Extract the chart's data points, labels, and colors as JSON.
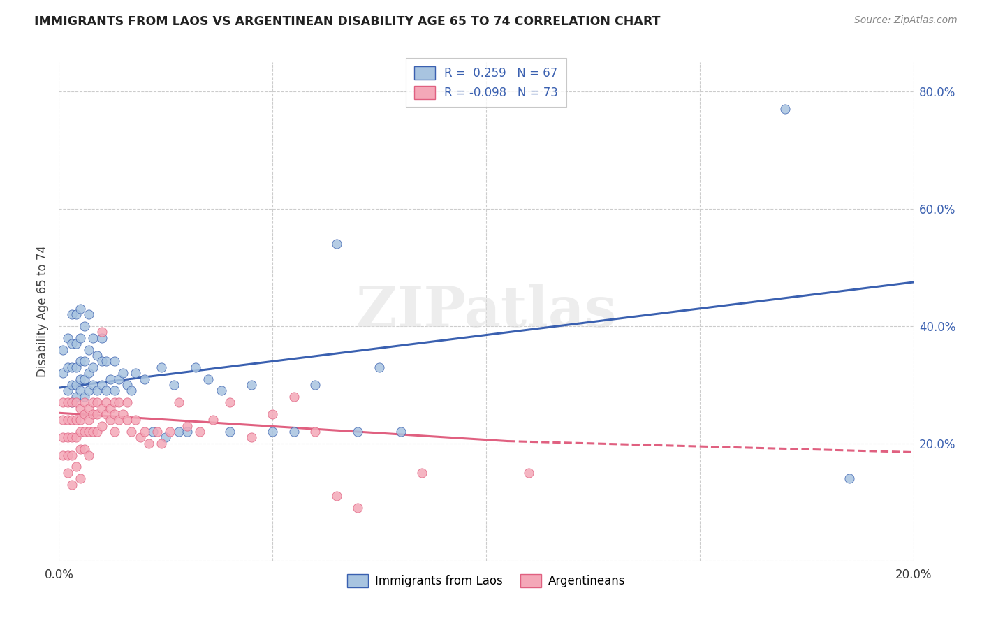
{
  "title": "IMMIGRANTS FROM LAOS VS ARGENTINEAN DISABILITY AGE 65 TO 74 CORRELATION CHART",
  "source": "Source: ZipAtlas.com",
  "ylabel": "Disability Age 65 to 74",
  "xlim": [
    0.0,
    0.2
  ],
  "ylim": [
    0.0,
    0.85
  ],
  "x_ticks": [
    0.0,
    0.05,
    0.1,
    0.15,
    0.2
  ],
  "x_tick_labels": [
    "0.0%",
    "",
    "",
    "",
    "20.0%"
  ],
  "y_ticks": [
    0.0,
    0.2,
    0.4,
    0.6,
    0.8
  ],
  "y_tick_labels_right": [
    "",
    "20.0%",
    "40.0%",
    "60.0%",
    "80.0%"
  ],
  "legend_r1": "R =  0.259",
  "legend_n1": "N = 67",
  "legend_r2": "R = -0.098",
  "legend_n2": "N = 73",
  "color_blue": "#a8c4e0",
  "color_pink": "#f4a8b8",
  "line_color_blue": "#3a60b0",
  "line_color_pink": "#e06080",
  "watermark": "ZIPatlas",
  "blue_x": [
    0.001,
    0.001,
    0.002,
    0.002,
    0.002,
    0.003,
    0.003,
    0.003,
    0.003,
    0.003,
    0.004,
    0.004,
    0.004,
    0.004,
    0.004,
    0.005,
    0.005,
    0.005,
    0.005,
    0.005,
    0.006,
    0.006,
    0.006,
    0.006,
    0.007,
    0.007,
    0.007,
    0.007,
    0.008,
    0.008,
    0.008,
    0.009,
    0.009,
    0.01,
    0.01,
    0.01,
    0.011,
    0.011,
    0.012,
    0.013,
    0.013,
    0.014,
    0.015,
    0.016,
    0.017,
    0.018,
    0.02,
    0.022,
    0.024,
    0.025,
    0.027,
    0.028,
    0.03,
    0.032,
    0.035,
    0.038,
    0.04,
    0.045,
    0.05,
    0.055,
    0.06,
    0.065,
    0.07,
    0.075,
    0.08,
    0.17,
    0.185
  ],
  "blue_y": [
    0.32,
    0.36,
    0.29,
    0.33,
    0.38,
    0.27,
    0.3,
    0.33,
    0.37,
    0.42,
    0.28,
    0.3,
    0.33,
    0.37,
    0.42,
    0.29,
    0.31,
    0.34,
    0.38,
    0.43,
    0.28,
    0.31,
    0.34,
    0.4,
    0.29,
    0.32,
    0.36,
    0.42,
    0.3,
    0.33,
    0.38,
    0.29,
    0.35,
    0.3,
    0.34,
    0.38,
    0.29,
    0.34,
    0.31,
    0.29,
    0.34,
    0.31,
    0.32,
    0.3,
    0.29,
    0.32,
    0.31,
    0.22,
    0.33,
    0.21,
    0.3,
    0.22,
    0.22,
    0.33,
    0.31,
    0.29,
    0.22,
    0.3,
    0.22,
    0.22,
    0.3,
    0.54,
    0.22,
    0.33,
    0.22,
    0.77,
    0.14
  ],
  "pink_x": [
    0.001,
    0.001,
    0.001,
    0.001,
    0.002,
    0.002,
    0.002,
    0.002,
    0.002,
    0.003,
    0.003,
    0.003,
    0.003,
    0.003,
    0.004,
    0.004,
    0.004,
    0.004,
    0.005,
    0.005,
    0.005,
    0.005,
    0.005,
    0.006,
    0.006,
    0.006,
    0.006,
    0.007,
    0.007,
    0.007,
    0.007,
    0.008,
    0.008,
    0.008,
    0.009,
    0.009,
    0.009,
    0.01,
    0.01,
    0.01,
    0.011,
    0.011,
    0.012,
    0.012,
    0.013,
    0.013,
    0.013,
    0.014,
    0.014,
    0.015,
    0.016,
    0.016,
    0.017,
    0.018,
    0.019,
    0.02,
    0.021,
    0.023,
    0.024,
    0.026,
    0.028,
    0.03,
    0.033,
    0.036,
    0.04,
    0.045,
    0.05,
    0.055,
    0.06,
    0.065,
    0.07,
    0.085,
    0.11
  ],
  "pink_y": [
    0.27,
    0.24,
    0.21,
    0.18,
    0.27,
    0.24,
    0.21,
    0.18,
    0.15,
    0.27,
    0.24,
    0.21,
    0.18,
    0.13,
    0.27,
    0.24,
    0.21,
    0.16,
    0.26,
    0.24,
    0.22,
    0.19,
    0.14,
    0.27,
    0.25,
    0.22,
    0.19,
    0.26,
    0.24,
    0.22,
    0.18,
    0.27,
    0.25,
    0.22,
    0.27,
    0.25,
    0.22,
    0.39,
    0.26,
    0.23,
    0.27,
    0.25,
    0.26,
    0.24,
    0.27,
    0.25,
    0.22,
    0.27,
    0.24,
    0.25,
    0.27,
    0.24,
    0.22,
    0.24,
    0.21,
    0.22,
    0.2,
    0.22,
    0.2,
    0.22,
    0.27,
    0.23,
    0.22,
    0.24,
    0.27,
    0.21,
    0.25,
    0.28,
    0.22,
    0.11,
    0.09,
    0.15,
    0.15
  ]
}
